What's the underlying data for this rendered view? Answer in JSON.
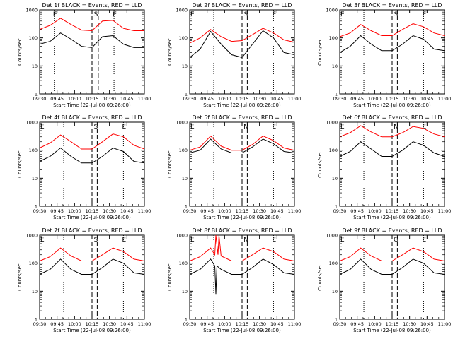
{
  "figure": {
    "xtick_labels": [
      "09:30",
      "09:45",
      "10:00",
      "10:15",
      "10:30",
      "10:45",
      "11:00"
    ],
    "xlabel": "Start Time (22-Jul-08 09:26:00)",
    "ylabel": "Counts/sec",
    "colors": {
      "events": "#000000",
      "lld": "#ff0000"
    }
  },
  "chart_data": [
    {
      "type": "line",
      "title": "Det 1f BLACK = Events, RED = LLD",
      "xlabel": "Start Time (22-Jul-08 09:26:00)",
      "ylabel": "Counts/sec",
      "xlim": [
        0,
        100
      ],
      "x_ticks": [
        0,
        16.66,
        33.33,
        50,
        66.66,
        83.33,
        100
      ],
      "ylim": [
        1,
        1000
      ],
      "yscale": "log",
      "y_ticks": [
        1,
        10,
        100,
        1000
      ],
      "markers": [
        {
          "label": "E",
          "x": 14
        },
        {
          "label": "S",
          "x": 53
        },
        {
          "label": "E",
          "x": 71
        }
      ],
      "dotted_lines": [
        14,
        71
      ],
      "dashed_lines": [
        50,
        56
      ],
      "series": [
        {
          "name": "Events",
          "color": "#000000",
          "x": [
            0,
            10,
            20,
            30,
            40,
            50,
            60,
            70,
            80,
            90,
            100
          ],
          "y": [
            60,
            75,
            150,
            90,
            50,
            45,
            110,
            120,
            60,
            45,
            45
          ]
        },
        {
          "name": "LLD",
          "color": "#ff0000",
          "x": [
            0,
            10,
            20,
            30,
            40,
            50,
            60,
            70,
            80,
            90,
            100
          ],
          "y": [
            200,
            280,
            500,
            300,
            190,
            180,
            400,
            420,
            220,
            180,
            180
          ]
        }
      ]
    },
    {
      "type": "line",
      "title": "Det 2f BLACK = Events, RED = LLD",
      "xlabel": "Start Time (22-Jul-08 09:26:00)",
      "ylabel": "Counts/sec",
      "xlim": [
        0,
        100
      ],
      "x_ticks": [
        0,
        16.66,
        33.33,
        50,
        66.66,
        83.33,
        100
      ],
      "ylim": [
        1,
        1000
      ],
      "yscale": "log",
      "y_ticks": [
        1,
        10,
        100,
        1000
      ],
      "markers": [
        {
          "label": "E",
          "x": 0
        },
        {
          "label": "S",
          "x": 53
        },
        {
          "label": "E",
          "x": 80
        }
      ],
      "dotted_lines": [
        23,
        80
      ],
      "dashed_lines": [
        50,
        55
      ],
      "series": [
        {
          "name": "Events",
          "color": "#000000",
          "x": [
            0,
            10,
            20,
            30,
            40,
            50,
            60,
            70,
            80,
            90,
            100
          ],
          "y": [
            20,
            40,
            170,
            60,
            25,
            20,
            60,
            180,
            100,
            30,
            25
          ]
        },
        {
          "name": "LLD",
          "color": "#ff0000",
          "x": [
            0,
            10,
            20,
            30,
            40,
            50,
            60,
            70,
            80,
            90,
            100
          ],
          "y": [
            65,
            100,
            200,
            110,
            75,
            80,
            130,
            220,
            150,
            85,
            70
          ]
        }
      ]
    },
    {
      "type": "line",
      "title": "Det 3f BLACK = Events, RED = LLD",
      "xlabel": "Start Time (22-Jul-08 09:26:00)",
      "ylabel": "Counts/sec",
      "xlim": [
        0,
        100
      ],
      "x_ticks": [
        0,
        16.66,
        33.33,
        50,
        66.66,
        83.33,
        100
      ],
      "ylim": [
        1,
        1000
      ],
      "yscale": "log",
      "y_ticks": [
        1,
        10,
        100,
        1000
      ],
      "markers": [
        {
          "label": "E",
          "x": 0
        },
        {
          "label": "S",
          "x": 53
        },
        {
          "label": "E",
          "x": 80
        }
      ],
      "dotted_lines": [
        23,
        80
      ],
      "dashed_lines": [
        50,
        55
      ],
      "series": [
        {
          "name": "Events",
          "color": "#000000",
          "x": [
            0,
            10,
            20,
            30,
            40,
            50,
            60,
            70,
            80,
            90,
            100
          ],
          "y": [
            30,
            50,
            120,
            60,
            35,
            35,
            60,
            120,
            90,
            40,
            35
          ]
        },
        {
          "name": "LLD",
          "color": "#ff0000",
          "x": [
            0,
            10,
            20,
            30,
            40,
            50,
            60,
            70,
            80,
            90,
            100
          ],
          "y": [
            110,
            150,
            300,
            180,
            120,
            120,
            200,
            320,
            250,
            150,
            120
          ]
        }
      ]
    },
    {
      "type": "line",
      "title": "Det 4f BLACK = Events, RED = LLD",
      "xlabel": "Start Time (22-Jul-08 09:26:00)",
      "ylabel": "Counts/sec",
      "xlim": [
        0,
        100
      ],
      "x_ticks": [
        0,
        16.66,
        33.33,
        50,
        66.66,
        83.33,
        100
      ],
      "ylim": [
        1,
        1000
      ],
      "yscale": "log",
      "y_ticks": [
        1,
        10,
        100,
        1000
      ],
      "markers": [
        {
          "label": "E",
          "x": 0
        },
        {
          "label": "S",
          "x": 53
        },
        {
          "label": "E",
          "x": 80
        }
      ],
      "dotted_lines": [
        23,
        80
      ],
      "dashed_lines": [
        50,
        55
      ],
      "series": [
        {
          "name": "Events",
          "color": "#000000",
          "x": [
            0,
            10,
            20,
            30,
            40,
            50,
            60,
            70,
            80,
            90,
            100
          ],
          "y": [
            40,
            60,
            120,
            60,
            35,
            35,
            60,
            120,
            90,
            40,
            35
          ]
        },
        {
          "name": "LLD",
          "color": "#ff0000",
          "x": [
            0,
            10,
            20,
            30,
            40,
            50,
            60,
            70,
            80,
            90,
            100
          ],
          "y": [
            120,
            180,
            350,
            200,
            110,
            110,
            200,
            380,
            300,
            150,
            110
          ]
        }
      ]
    },
    {
      "type": "line",
      "title": "Det 5f BLACK = Events, RED = LLD",
      "xlabel": "Start Time (22-Jul-08 09:26:00)",
      "ylabel": "Counts/sec",
      "xlim": [
        0,
        100
      ],
      "x_ticks": [
        0,
        16.66,
        33.33,
        50,
        66.66,
        83.33,
        100
      ],
      "ylim": [
        1,
        1000
      ],
      "yscale": "log",
      "y_ticks": [
        1,
        10,
        100,
        1000
      ],
      "markers": [
        {
          "label": "E",
          "x": 0
        },
        {
          "label": "N",
          "x": 53
        },
        {
          "label": "E",
          "x": 80
        }
      ],
      "dotted_lines": [
        23,
        80
      ],
      "dashed_lines": [
        50,
        55
      ],
      "series": [
        {
          "name": "Events",
          "color": "#000000",
          "x": [
            0,
            10,
            20,
            30,
            40,
            50,
            60,
            70,
            80,
            90,
            100
          ],
          "y": [
            80,
            100,
            250,
            110,
            80,
            80,
            130,
            250,
            170,
            90,
            80
          ]
        },
        {
          "name": "LLD",
          "color": "#ff0000",
          "x": [
            0,
            10,
            20,
            30,
            40,
            50,
            60,
            70,
            80,
            90,
            100
          ],
          "y": [
            100,
            130,
            320,
            140,
            100,
            100,
            160,
            320,
            220,
            120,
            100
          ]
        }
      ]
    },
    {
      "type": "line",
      "title": "Det 6f BLACK = Events, RED = LLD",
      "xlabel": "Start Time (22-Jul-08 09:26:00)",
      "ylabel": "Counts/sec",
      "xlim": [
        0,
        100
      ],
      "x_ticks": [
        0,
        16.66,
        33.33,
        50,
        66.66,
        83.33,
        100
      ],
      "ylim": [
        1,
        1000
      ],
      "yscale": "log",
      "y_ticks": [
        1,
        10,
        100,
        1000
      ],
      "markers": [
        {
          "label": "E",
          "x": 0
        },
        {
          "label": "N",
          "x": 53
        },
        {
          "label": "E",
          "x": 80
        }
      ],
      "dotted_lines": [
        23,
        80
      ],
      "dashed_lines": [
        50,
        55
      ],
      "series": [
        {
          "name": "Events",
          "color": "#000000",
          "x": [
            0,
            10,
            20,
            30,
            40,
            50,
            60,
            70,
            80,
            90,
            100
          ],
          "y": [
            60,
            90,
            200,
            110,
            60,
            60,
            100,
            200,
            150,
            80,
            60
          ]
        },
        {
          "name": "LLD",
          "color": "#ff0000",
          "x": [
            0,
            10,
            20,
            30,
            40,
            50,
            60,
            70,
            80,
            90,
            100
          ],
          "y": [
            300,
            420,
            750,
            450,
            300,
            300,
            420,
            700,
            600,
            380,
            300
          ]
        }
      ]
    },
    {
      "type": "line",
      "title": "Det 7f BLACK = Events, RED = LLD",
      "xlabel": "Start Time (22-Jul-08 09:26:00)",
      "ylabel": "Counts/sec",
      "xlim": [
        0,
        100
      ],
      "x_ticks": [
        0,
        16.66,
        33.33,
        50,
        66.66,
        83.33,
        100
      ],
      "ylim": [
        1,
        1000
      ],
      "yscale": "log",
      "y_ticks": [
        1,
        10,
        100,
        1000
      ],
      "markers": [
        {
          "label": "E",
          "x": 0
        },
        {
          "label": "S",
          "x": 53
        },
        {
          "label": "E",
          "x": 80
        }
      ],
      "dotted_lines": [
        23,
        80
      ],
      "dashed_lines": [
        50,
        55
      ],
      "series": [
        {
          "name": "Events",
          "color": "#000000",
          "x": [
            0,
            10,
            20,
            30,
            40,
            50,
            60,
            70,
            80,
            90,
            100
          ],
          "y": [
            40,
            60,
            140,
            60,
            40,
            40,
            70,
            140,
            100,
            45,
            40
          ]
        },
        {
          "name": "LLD",
          "color": "#ff0000",
          "x": [
            0,
            10,
            20,
            30,
            40,
            50,
            60,
            70,
            80,
            90,
            100
          ],
          "y": [
            120,
            170,
            350,
            180,
            120,
            120,
            200,
            350,
            260,
            140,
            120
          ]
        }
      ]
    },
    {
      "type": "line",
      "title": "Det 8f BLACK = Events, RED = LLD",
      "xlabel": "Start Time (22-Jul-08 09:26:00)",
      "ylabel": "Counts/sec",
      "xlim": [
        0,
        100
      ],
      "x_ticks": [
        0,
        16.66,
        33.33,
        50,
        66.66,
        83.33,
        100
      ],
      "ylim": [
        1,
        1000
      ],
      "yscale": "log",
      "y_ticks": [
        1,
        10,
        100,
        1000
      ],
      "markers": [
        {
          "label": "E",
          "x": 0
        },
        {
          "label": "N",
          "x": 53
        },
        {
          "label": "E",
          "x": 80
        }
      ],
      "dotted_lines": [
        23,
        80
      ],
      "dashed_lines": [
        50,
        55
      ],
      "series": [
        {
          "name": "Events",
          "color": "#000000",
          "x": [
            0,
            10,
            20,
            24,
            25,
            26,
            30,
            40,
            50,
            60,
            70,
            80,
            90,
            100
          ],
          "y": [
            40,
            60,
            140,
            80,
            8,
            80,
            60,
            40,
            40,
            70,
            140,
            90,
            45,
            40
          ]
        },
        {
          "name": "LLD",
          "color": "#ff0000",
          "x": [
            0,
            10,
            20,
            24,
            25,
            27,
            28,
            30,
            40,
            50,
            60,
            70,
            80,
            90,
            100
          ],
          "y": [
            120,
            170,
            350,
            200,
            1000,
            200,
            1000,
            180,
            120,
            120,
            200,
            350,
            260,
            140,
            120
          ]
        }
      ]
    },
    {
      "type": "line",
      "title": "Det 9f BLACK = Events, RED = LLD",
      "xlabel": "Start Time (22-Jul-08 09:26:00)",
      "ylabel": "Counts/sec",
      "xlim": [
        0,
        100
      ],
      "x_ticks": [
        0,
        16.66,
        33.33,
        50,
        66.66,
        83.33,
        100
      ],
      "ylim": [
        1,
        1000
      ],
      "yscale": "log",
      "y_ticks": [
        1,
        10,
        100,
        1000
      ],
      "markers": [
        {
          "label": "E",
          "x": 0
        },
        {
          "label": "G",
          "x": 53
        },
        {
          "label": "E",
          "x": 80
        }
      ],
      "dotted_lines": [
        23,
        80
      ],
      "dashed_lines": [
        50,
        55
      ],
      "series": [
        {
          "name": "Events",
          "color": "#000000",
          "x": [
            0,
            10,
            20,
            30,
            40,
            50,
            60,
            70,
            80,
            90,
            100
          ],
          "y": [
            40,
            60,
            140,
            60,
            40,
            40,
            70,
            140,
            100,
            45,
            40
          ]
        },
        {
          "name": "LLD",
          "color": "#ff0000",
          "x": [
            0,
            10,
            20,
            30,
            40,
            50,
            60,
            70,
            80,
            90,
            100
          ],
          "y": [
            120,
            170,
            350,
            180,
            120,
            120,
            200,
            350,
            260,
            140,
            120
          ]
        }
      ]
    }
  ]
}
